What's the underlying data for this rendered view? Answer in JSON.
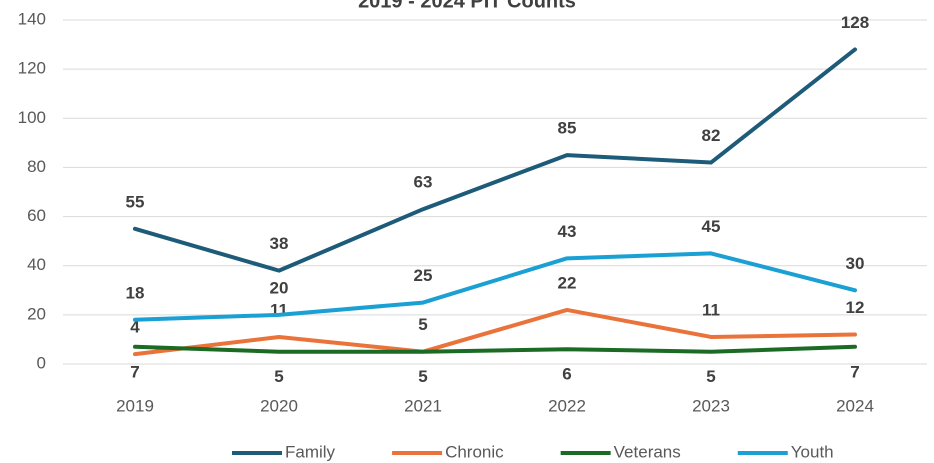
{
  "chart_data": {
    "type": "line",
    "title": "2019 - 2024 PIT Counts",
    "categories": [
      "2019",
      "2020",
      "2021",
      "2022",
      "2023",
      "2024"
    ],
    "series": [
      {
        "name": "Family",
        "color": "#1d5b79",
        "values": [
          55,
          38,
          63,
          85,
          82,
          128
        ]
      },
      {
        "name": "Chronic",
        "color": "#e9733a",
        "values": [
          4,
          11,
          5,
          22,
          11,
          12
        ]
      },
      {
        "name": "Veterans",
        "color": "#1c6b25",
        "values": [
          7,
          5,
          5,
          6,
          5,
          7
        ]
      },
      {
        "name": "Youth",
        "color": "#1aa0d3",
        "values": [
          18,
          20,
          25,
          43,
          45,
          30
        ]
      }
    ],
    "ylim": [
      0,
      140
    ],
    "yticks": [
      0,
      20,
      40,
      60,
      80,
      100,
      120,
      140
    ],
    "grid": true,
    "legend": "bottom"
  }
}
